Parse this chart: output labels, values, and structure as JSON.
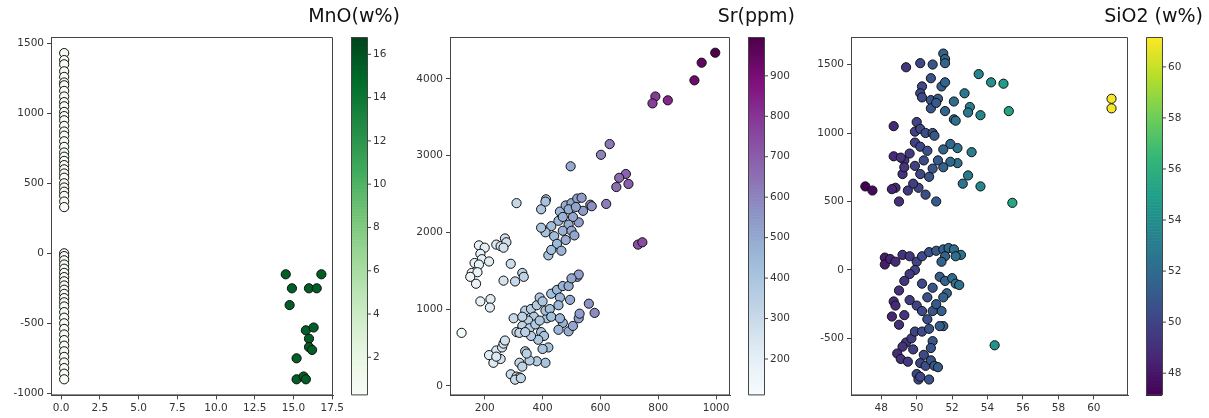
{
  "chart_data": [
    {
      "type": "scatter",
      "title": "MnO(w%)",
      "marker": "circle",
      "grid": false,
      "legend": false,
      "xlim": [
        -0.65,
        17.55
      ],
      "xticks": [
        {
          "value": 0,
          "label": "0.0"
        },
        2.5,
        {
          "value": 5,
          "label": "5.0"
        },
        7.5,
        {
          "value": 10,
          "label": "10.0"
        },
        12.5,
        {
          "value": 15,
          "label": "15.0"
        },
        17.5
      ],
      "ylim": [
        -1015,
        1545
      ],
      "yticks": [
        -1000,
        -500,
        0,
        500,
        1000,
        1500
      ],
      "clim": [
        0.24,
        16.8
      ],
      "cticks": [
        2,
        4,
        6,
        8,
        10,
        12,
        14,
        16
      ],
      "x": [
        0.2,
        0.2,
        0.2,
        0.2,
        0.2,
        0.2,
        0.2,
        0.2,
        0.2,
        0.2,
        0.2,
        0.2,
        0.2,
        0.2,
        0.2,
        0.2,
        0.2,
        0.2,
        0.2,
        0.2,
        0.2,
        0.2,
        0.2,
        0.2,
        0.2,
        0.2,
        0.2,
        0.2,
        0.2,
        0.2,
        0.2,
        0.2,
        0.2,
        0.2,
        0.2,
        0.2,
        0.2,
        0.2,
        0.2,
        0.2,
        0.2,
        0.2,
        0.2,
        0.2,
        0.2,
        0.2,
        0.2,
        0.2,
        0.2,
        0.2,
        0.2,
        0.2,
        0.2,
        0.2,
        0.2,
        0.2,
        0.2,
        0.2,
        0.2,
        14.5,
        14.9,
        14.75,
        16.0,
        16.5,
        16.8,
        15.8,
        16.3,
        16.0,
        16.0,
        16.2,
        15.2,
        15.2,
        15.65,
        15.8
      ],
      "values": [
        1430,
        1380,
        1350,
        1300,
        1260,
        1220,
        1200,
        1160,
        1120,
        1080,
        1050,
        1010,
        980,
        950,
        910,
        870,
        840,
        800,
        760,
        720,
        690,
        660,
        630,
        600,
        570,
        540,
        500,
        470,
        440,
        410,
        370,
        330,
        0,
        -20,
        -50,
        -80,
        -110,
        -140,
        -170,
        -200,
        -230,
        -260,
        -290,
        -320,
        -350,
        -380,
        -420,
        -460,
        -500,
        -540,
        -580,
        -620,
        -660,
        -700,
        -740,
        -780,
        -820,
        -860,
        -900,
        -150,
        -250,
        -370,
        -250,
        -250,
        -150,
        -550,
        -530,
        -610,
        -670,
        -690,
        -750,
        -900,
        -880,
        -900
      ],
      "cvalues": [
        0.3,
        0.3,
        0.3,
        0.3,
        0.3,
        0.3,
        0.3,
        0.3,
        0.3,
        0.3,
        0.3,
        0.3,
        0.3,
        0.3,
        0.3,
        0.3,
        0.3,
        0.3,
        0.3,
        0.3,
        0.3,
        0.3,
        0.3,
        0.3,
        0.3,
        0.3,
        0.3,
        0.3,
        0.3,
        0.3,
        0.3,
        0.3,
        0.3,
        0.3,
        0.3,
        0.3,
        0.3,
        0.3,
        0.3,
        0.3,
        0.3,
        0.3,
        0.3,
        0.3,
        0.3,
        0.3,
        0.3,
        0.3,
        0.3,
        0.3,
        0.3,
        0.3,
        0.3,
        0.3,
        0.3,
        0.3,
        0.3,
        0.3,
        0.3,
        15.5,
        15.5,
        15.5,
        15.5,
        15.5,
        15.5,
        15.5,
        15.5,
        15.5,
        15.5,
        15.5,
        15.5,
        15.5,
        15.5,
        15.5
      ]
    },
    {
      "type": "scatter",
      "title": "Sr(ppm)",
      "marker": "circle",
      "grid": false,
      "legend": false,
      "xlim": [
        80,
        1048
      ],
      "xticks": [
        200,
        400,
        600,
        800,
        1000
      ],
      "ylim": [
        -125,
        4545
      ],
      "yticks": [
        0,
        1000,
        2000,
        3000,
        4000
      ],
      "clim": [
        110,
        996
      ],
      "cticks": [
        200,
        300,
        400,
        500,
        600,
        700,
        800,
        900
      ],
      "x": [
        120,
        997,
        950,
        925,
        790,
        780,
        833,
        632,
        602,
        497,
        688,
        665,
        697,
        655,
        620,
        565,
        570,
        310,
        730,
        745,
        412,
        395,
        430,
        410,
        460,
        480,
        500,
        520,
        535,
        540,
        525,
        505,
        490,
        470,
        455,
        440,
        450,
        420,
        410,
        395,
        430,
        465,
        480,
        500,
        510,
        470,
        490,
        515,
        180,
        200,
        185,
        190,
        165,
        180,
        155,
        175,
        150,
        170,
        215,
        240,
        255,
        270,
        275,
        265,
        290,
        265,
        305,
        330,
        335,
        185,
        220,
        218,
        340,
        360,
        380,
        390,
        400,
        370,
        350,
        330,
        310,
        320,
        355,
        375,
        395,
        405,
        385,
        360,
        340,
        300,
        330,
        415,
        410,
        425,
        390,
        420,
        400,
        410,
        380,
        355,
        340,
        345,
        320,
        330,
        290,
        310,
        320,
        305,
        325,
        230,
        240,
        260,
        265,
        270,
        255,
        215,
        240,
        430,
        450,
        470,
        490,
        520,
        525,
        500,
        460,
        495,
        455,
        430,
        470,
        455,
        490,
        505,
        525,
        528,
        560,
        580,
        460
      ],
      "values": [
        690,
        4340,
        4210,
        3980,
        3770,
        3680,
        3720,
        3150,
        3010,
        2860,
        2760,
        2710,
        2630,
        2590,
        2370,
        2360,
        2340,
        2380,
        1840,
        1870,
        2430,
        2300,
        2080,
        2400,
        2270,
        2350,
        2380,
        2440,
        2450,
        2280,
        2130,
        2200,
        2100,
        2020,
        2150,
        1950,
        1850,
        1700,
        2000,
        2060,
        1770,
        1760,
        1900,
        2020,
        1960,
        2200,
        2300,
        2330,
        1830,
        1800,
        1720,
        1650,
        1600,
        1580,
        1470,
        1480,
        1420,
        1330,
        1620,
        1840,
        1820,
        1920,
        1870,
        1800,
        1590,
        1370,
        1360,
        1470,
        1420,
        1100,
        1130,
        1020,
        980,
        1000,
        1050,
        1150,
        1100,
        900,
        850,
        780,
        700,
        690,
        750,
        800,
        700,
        650,
        600,
        650,
        700,
        880,
        900,
        880,
        980,
        1000,
        850,
        500,
        480,
        300,
        320,
        330,
        450,
        420,
        300,
        250,
        150,
        120,
        110,
        80,
        100,
        300,
        460,
        500,
        550,
        590,
        350,
        400,
        380,
        1200,
        1250,
        1300,
        1300,
        1420,
        1450,
        1400,
        1150,
        1120,
        1050,
        900,
        820,
        730,
        710,
        780,
        880,
        940,
        1070,
        950,
        880
      ],
      "cvalues": [
        120,
        997,
        950,
        925,
        790,
        780,
        833,
        632,
        602,
        497,
        688,
        665,
        697,
        655,
        620,
        565,
        570,
        310,
        730,
        745,
        412,
        395,
        430,
        410,
        460,
        480,
        500,
        520,
        535,
        540,
        525,
        505,
        490,
        470,
        455,
        440,
        450,
        420,
        410,
        395,
        430,
        465,
        480,
        500,
        510,
        470,
        490,
        515,
        180,
        200,
        185,
        190,
        165,
        180,
        155,
        175,
        150,
        170,
        215,
        240,
        255,
        270,
        275,
        265,
        290,
        265,
        305,
        330,
        335,
        185,
        220,
        218,
        340,
        360,
        380,
        390,
        400,
        370,
        350,
        330,
        310,
        320,
        355,
        375,
        395,
        405,
        385,
        360,
        340,
        300,
        330,
        415,
        410,
        425,
        390,
        420,
        400,
        410,
        380,
        355,
        340,
        345,
        320,
        330,
        290,
        310,
        320,
        305,
        325,
        230,
        240,
        260,
        265,
        270,
        255,
        215,
        240,
        430,
        450,
        470,
        490,
        520,
        525,
        500,
        460,
        495,
        455,
        430,
        470,
        455,
        490,
        505,
        525,
        528,
        560,
        580,
        460
      ]
    },
    {
      "type": "scatter",
      "title": "SiO2 (w%)",
      "marker": "circle",
      "grid": false,
      "legend": false,
      "xlim": [
        46.29,
        61.93
      ],
      "xticks": [
        48,
        50,
        52,
        54,
        56,
        58,
        60
      ],
      "ylim": [
        -916,
        1701
      ],
      "yticks": [
        -500,
        0,
        500,
        1000,
        1500
      ],
      "clim": [
        47.13,
        61.17
      ],
      "cticks": [
        48,
        50,
        52,
        54,
        56,
        58,
        60
      ],
      "x": [
        47.1,
        47.5,
        48.7,
        48.7,
        48.8,
        48.6,
        49.0,
        49.4,
        50.2,
        50.9,
        51.5,
        51.6,
        51.6,
        50.3,
        50.2,
        50.3,
        50.8,
        50.8,
        50.8,
        51.2,
        51.1,
        51.4,
        51.6,
        51.6,
        52.1,
        52.1,
        52.2,
        52.7,
        53.0,
        52.9,
        53.5,
        53.6,
        54.2,
        54.9,
        55.2,
        61.0,
        61.0,
        55.4,
        53.6,
        52.6,
        52.9,
        53.1,
        52.3,
        52.3,
        51.9,
        51.9,
        51.5,
        51.5,
        51.1,
        50.5,
        50.1,
        49.8,
        49.5,
        49.2,
        49.3,
        49.6,
        49.9,
        50.2,
        50.4,
        50.7,
        50.9,
        51.2,
        49.9,
        49.9,
        50.0,
        50.2,
        50.5,
        50.9,
        51.0,
        50.2,
        50.6,
        49.3,
        49.1,
        48.2,
        48.2,
        48.5,
        48.8,
        49.2,
        49.6,
        50.0,
        50.3,
        50.7,
        51.1,
        51.5,
        51.8,
        52.1,
        52.5,
        52.2,
        51.6,
        51.4,
        51.3,
        51.6,
        52.0,
        52.2,
        52.4,
        51.7,
        51.5,
        51.4,
        51.5,
        51.3,
        50.9,
        50.6,
        50.3,
        49.9,
        49.6,
        49.3,
        49.0,
        48.7,
        48.8,
        48.6,
        49.0,
        49.3,
        49.6,
        50.0,
        50.3,
        50.6,
        50.9,
        51.1,
        49.4,
        49.2,
        48.9,
        49.1,
        49.5,
        49.7,
        49.9,
        50.3,
        50.7,
        50.9,
        50.8,
        50.4,
        50.2,
        50.5,
        50.8,
        51.0,
        51.2,
        50.0,
        50.1,
        50.2,
        50.7,
        49.8,
        54.4
      ],
      "values": [
        610,
        580,
        1050,
        830,
        600,
        590,
        500,
        1480,
        1510,
        1500,
        1580,
        1540,
        1510,
        1340,
        1290,
        1260,
        1400,
        1240,
        1180,
        1250,
        1220,
        1340,
        1370,
        1160,
        1230,
        1100,
        1090,
        1290,
        1190,
        1150,
        1430,
        1130,
        1370,
        1360,
        1160,
        1250,
        1180,
        490,
        610,
        630,
        690,
        860,
        890,
        780,
        920,
        790,
        880,
        750,
        500,
        550,
        600,
        630,
        580,
        700,
        800,
        850,
        760,
        700,
        800,
        680,
        740,
        800,
        930,
        1010,
        1080,
        1030,
        1000,
        1000,
        980,
        900,
        870,
        750,
        820,
        90,
        40,
        80,
        60,
        110,
        100,
        60,
        100,
        130,
        140,
        150,
        160,
        150,
        110,
        100,
        100,
        60,
        -50,
        -80,
        -60,
        -100,
        -110,
        -170,
        -200,
        -300,
        -410,
        -410,
        -130,
        -200,
        -100,
        0,
        -30,
        -80,
        -150,
        -230,
        -260,
        -340,
        -400,
        -330,
        -220,
        -260,
        -300,
        -360,
        -300,
        -250,
        -530,
        -560,
        -610,
        -650,
        -670,
        -500,
        -450,
        -450,
        -430,
        -520,
        -570,
        -620,
        -680,
        -700,
        -660,
        -700,
        -710,
        -760,
        -800,
        -780,
        -800,
        -580,
        -550
      ],
      "cvalues": [
        47.1,
        47.5,
        48.7,
        48.7,
        48.8,
        48.6,
        49.0,
        49.4,
        50.2,
        50.9,
        51.5,
        51.6,
        51.6,
        50.3,
        50.2,
        50.3,
        50.8,
        50.8,
        50.8,
        51.2,
        51.1,
        51.4,
        51.6,
        51.6,
        52.1,
        52.1,
        52.2,
        52.7,
        53.0,
        52.9,
        53.5,
        53.6,
        54.2,
        54.9,
        55.2,
        61.0,
        61.0,
        55.4,
        53.6,
        52.6,
        52.9,
        53.1,
        52.3,
        52.3,
        51.9,
        51.9,
        51.5,
        51.5,
        51.1,
        50.5,
        50.1,
        49.8,
        49.5,
        49.2,
        49.3,
        49.6,
        49.9,
        50.2,
        50.4,
        50.7,
        50.9,
        51.2,
        49.9,
        49.9,
        50.0,
        50.2,
        50.5,
        50.9,
        51.0,
        50.2,
        50.6,
        49.3,
        49.1,
        48.2,
        48.2,
        48.5,
        48.8,
        49.2,
        49.6,
        50.0,
        50.3,
        50.7,
        51.1,
        51.5,
        51.8,
        52.1,
        52.5,
        52.2,
        51.6,
        51.4,
        51.3,
        51.6,
        52.0,
        52.2,
        52.4,
        51.7,
        51.5,
        51.4,
        51.5,
        51.3,
        50.9,
        50.6,
        50.3,
        49.9,
        49.6,
        49.3,
        49.0,
        48.7,
        48.8,
        48.6,
        49.0,
        49.3,
        49.6,
        50.0,
        50.3,
        50.6,
        50.9,
        51.1,
        49.4,
        49.2,
        48.9,
        49.1,
        49.5,
        49.7,
        49.9,
        50.3,
        50.7,
        50.9,
        50.8,
        50.4,
        50.2,
        50.5,
        50.8,
        51.0,
        51.2,
        50.0,
        50.1,
        50.2,
        50.7,
        49.8,
        54.4
      ]
    }
  ]
}
